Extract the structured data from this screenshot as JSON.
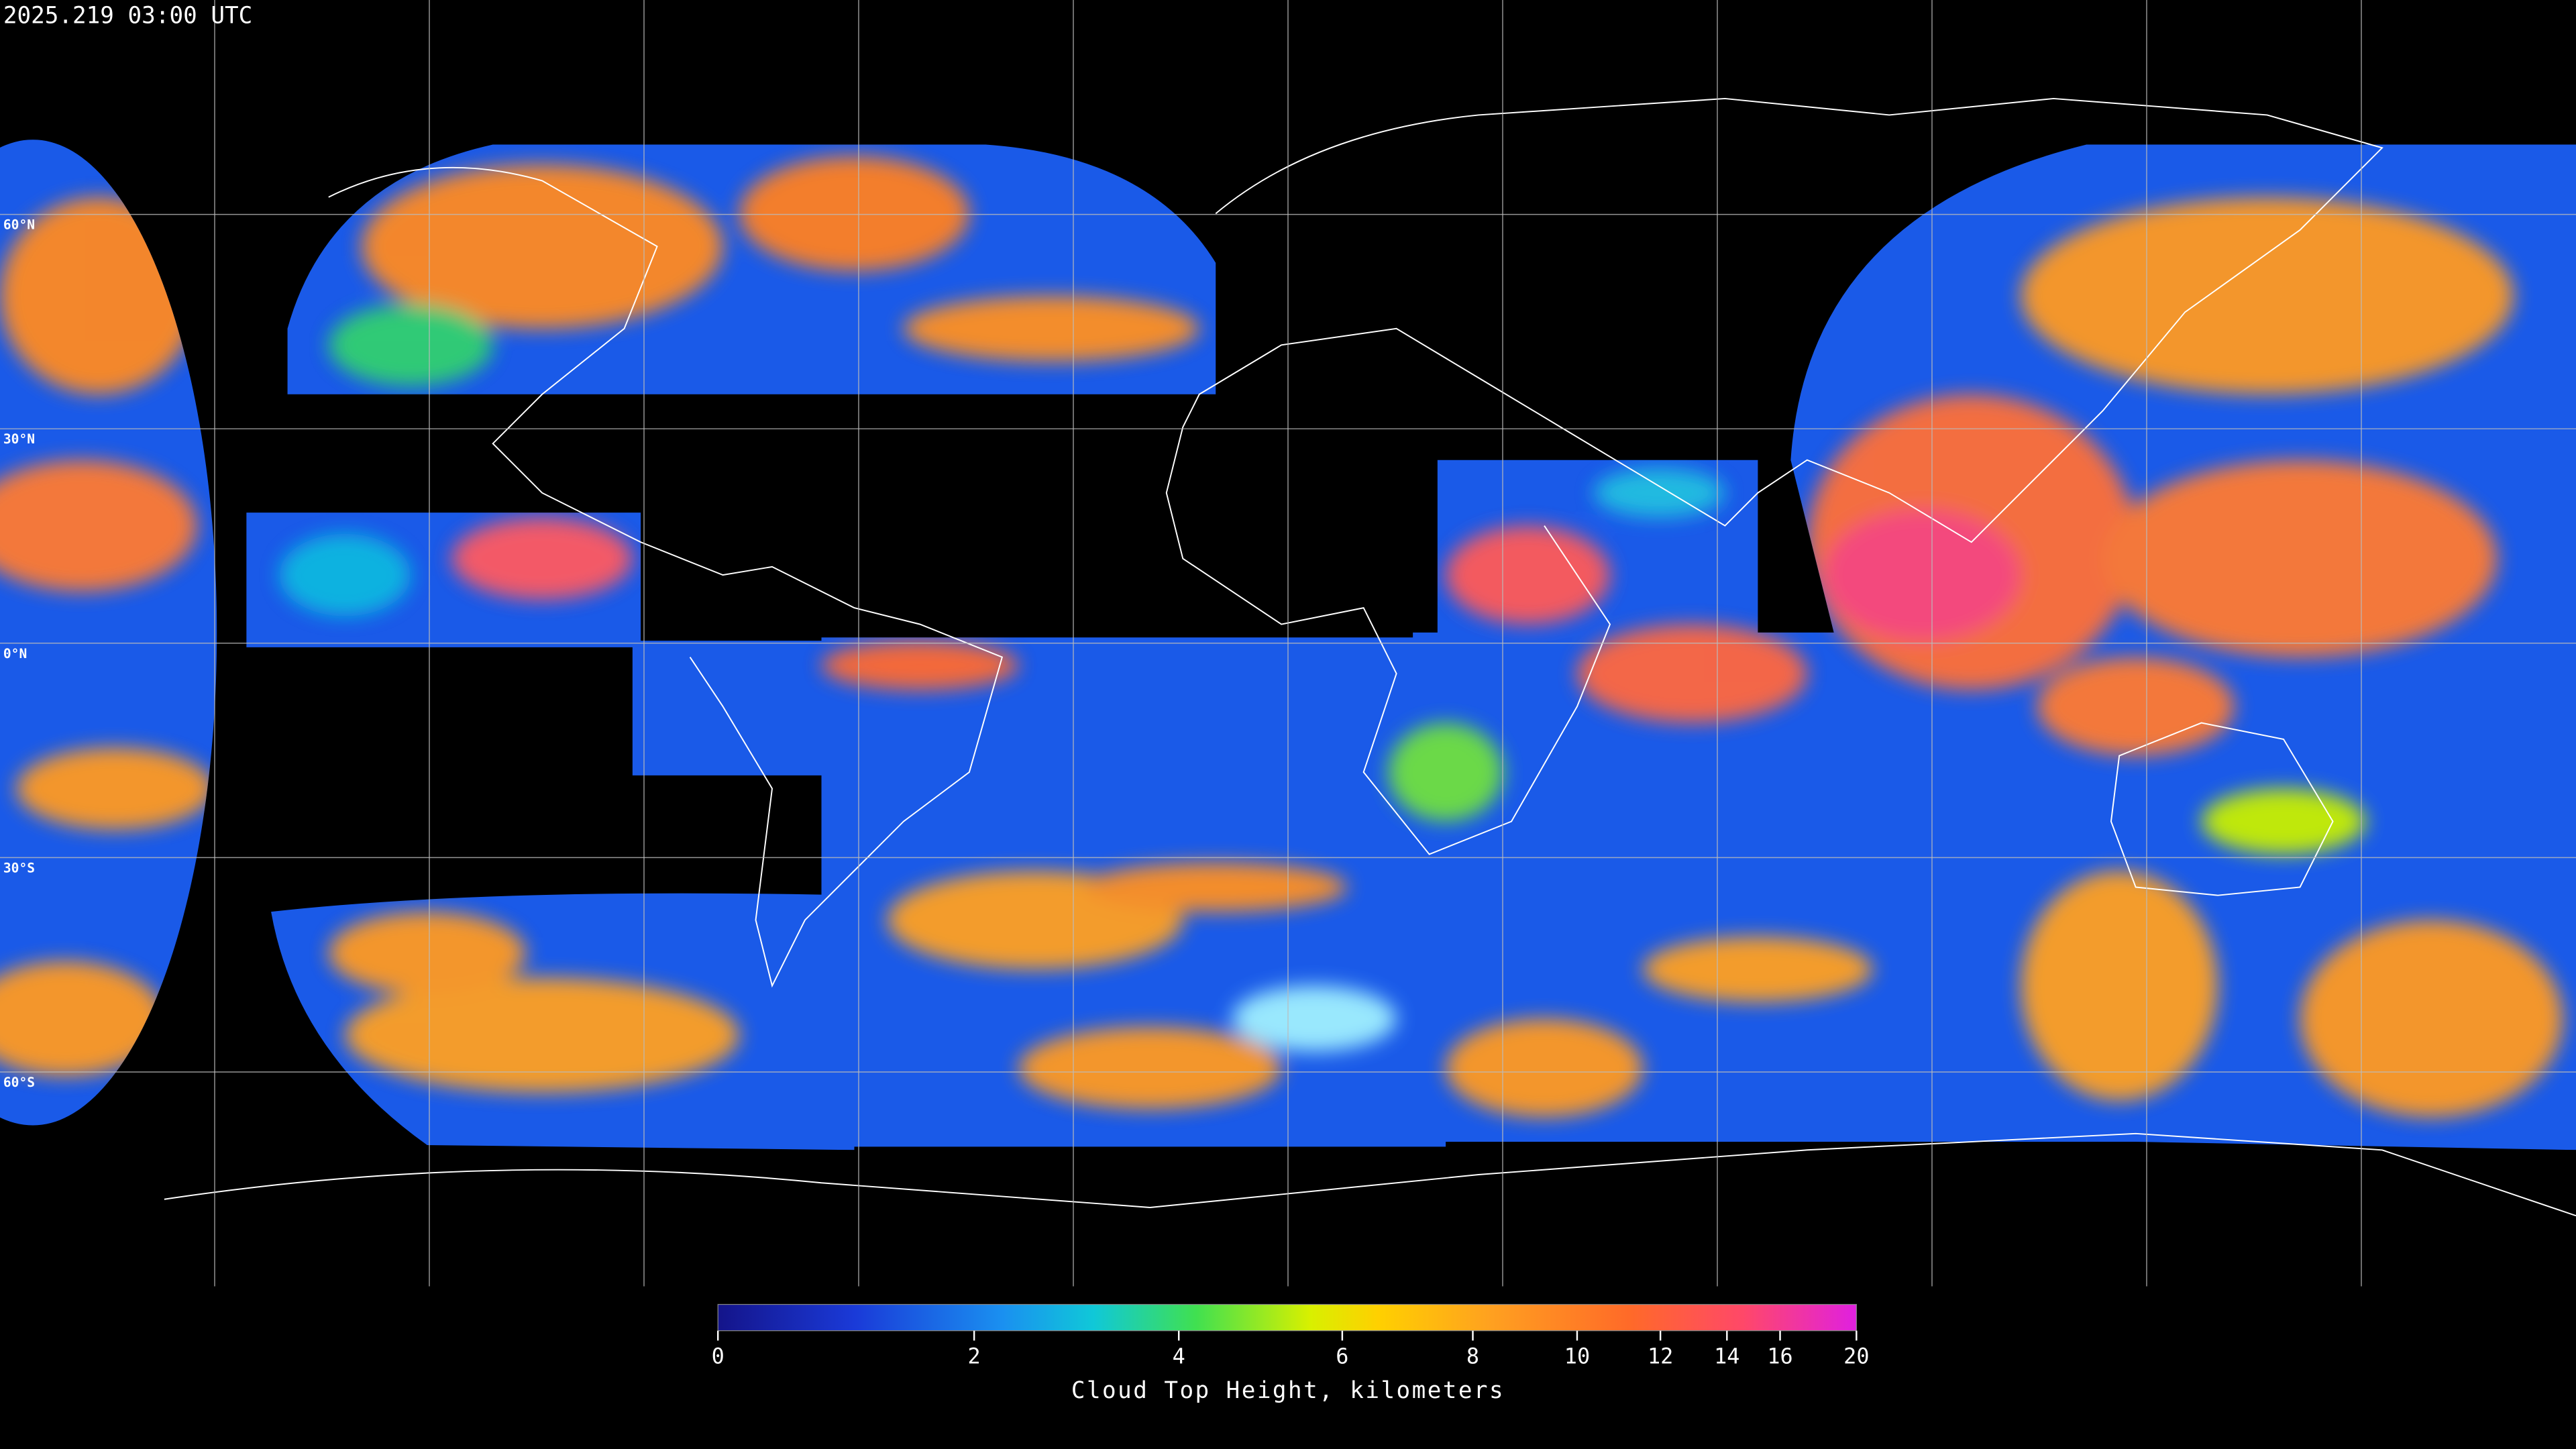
{
  "title": "2025.219 03:00 UTC",
  "latitude_labels": [
    "60°N",
    "30°N",
    "0°N",
    "30°S",
    "60°S"
  ],
  "colorbar": {
    "range": [
      0,
      20
    ],
    "ticks": [
      0,
      2,
      4,
      6,
      8,
      10,
      12,
      14,
      16,
      20
    ],
    "label": "Cloud Top Height, kilometers"
  }
}
